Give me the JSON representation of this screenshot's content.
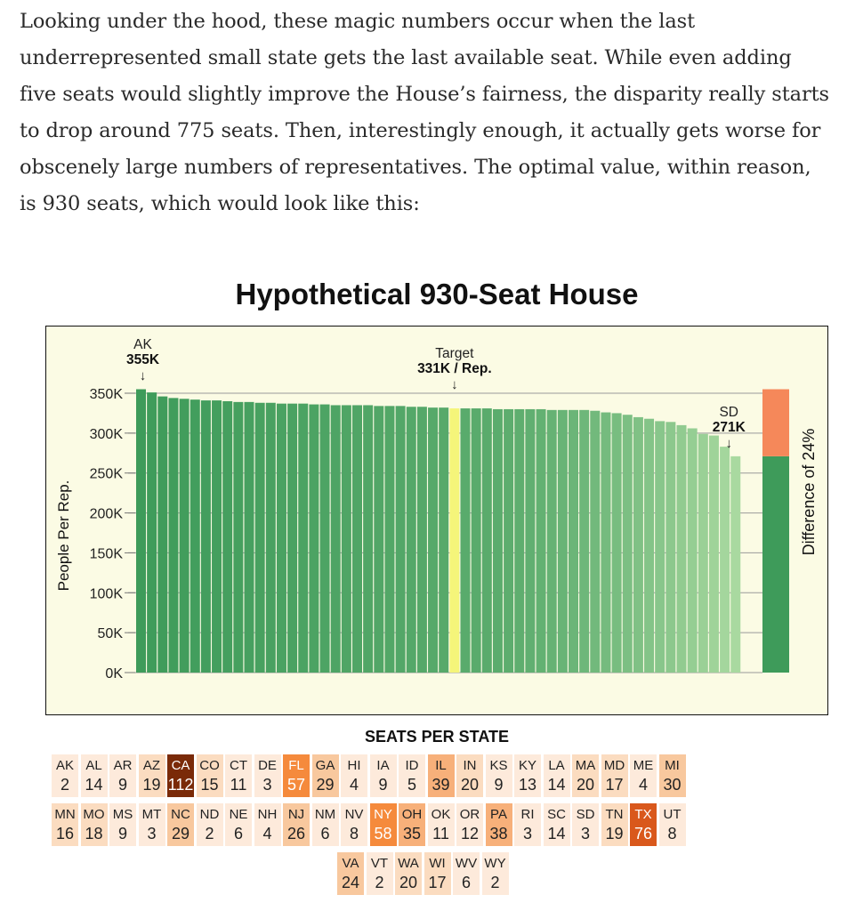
{
  "article": {
    "paragraph": "Looking under the hood, these magic numbers occur when the last underrepresented small state gets the last available seat. While even adding five seats would slightly improve the House’s fairness, the disparity really starts to drop around 775 seats. Then, interestingly enough, it actually gets worse for obscenely large numbers of representatives. The optimal value, within reason, is 930 seats, which would look like this:"
  },
  "chart_data": {
    "type": "bar",
    "title": "Hypothetical 930-Seat House",
    "ylabel": "People Per Rep.",
    "xlabel": "",
    "ylim": [
      0,
      350000
    ],
    "yticks": [
      "0K",
      "50K",
      "100K",
      "150K",
      "200K",
      "250K",
      "300K",
      "350K"
    ],
    "values": [
      355000,
      351000,
      346000,
      344000,
      343000,
      342000,
      341000,
      341000,
      340000,
      339000,
      339000,
      338000,
      338000,
      337000,
      337000,
      337000,
      336000,
      336000,
      335000,
      335000,
      335000,
      335000,
      334000,
      334000,
      334000,
      333000,
      333000,
      332000,
      332000,
      331000,
      331000,
      331000,
      331000,
      330000,
      330000,
      330000,
      330000,
      330000,
      329000,
      329000,
      329000,
      329000,
      328000,
      326000,
      325000,
      323000,
      320000,
      318000,
      315000,
      314000,
      310000,
      306000,
      299000,
      297000,
      283000,
      271000
    ],
    "target_index": 29,
    "target_value": 331000,
    "annotations": {
      "ak": {
        "label": "AK",
        "value": "355K"
      },
      "target": {
        "label": "Target",
        "value": "331K / Rep."
      },
      "sd": {
        "label": "SD",
        "value": "271K"
      }
    },
    "difference": {
      "low": 271000,
      "high": 355000,
      "label": "Difference of 24%"
    },
    "colors": {
      "bar_dark": "#3e9b5a",
      "bar_light": "#a9d9a0",
      "target_bar": "#f5f57a",
      "diff_top": "#f5885a",
      "background": "#fbfbe4"
    }
  },
  "seats": {
    "title": "SEATS PER STATE",
    "rows": [
      [
        [
          "AK",
          2
        ],
        [
          "AL",
          14
        ],
        [
          "AR",
          9
        ],
        [
          "AZ",
          19
        ],
        [
          "CA",
          112
        ],
        [
          "CO",
          15
        ],
        [
          "CT",
          11
        ],
        [
          "DE",
          3
        ],
        [
          "FL",
          57
        ],
        [
          "GA",
          29
        ],
        [
          "HI",
          4
        ],
        [
          "IA",
          9
        ],
        [
          "ID",
          5
        ],
        [
          "IL",
          39
        ],
        [
          "IN",
          20
        ],
        [
          "KS",
          9
        ],
        [
          "KY",
          13
        ],
        [
          "LA",
          14
        ],
        [
          "MA",
          20
        ],
        [
          "MD",
          17
        ],
        [
          "ME",
          4
        ],
        [
          "MI",
          30
        ]
      ],
      [
        [
          "MN",
          16
        ],
        [
          "MO",
          18
        ],
        [
          "MS",
          9
        ],
        [
          "MT",
          3
        ],
        [
          "NC",
          29
        ],
        [
          "ND",
          2
        ],
        [
          "NE",
          6
        ],
        [
          "NH",
          4
        ],
        [
          "NJ",
          26
        ],
        [
          "NM",
          6
        ],
        [
          "NV",
          8
        ],
        [
          "NY",
          58
        ],
        [
          "OH",
          35
        ],
        [
          "OK",
          11
        ],
        [
          "OR",
          12
        ],
        [
          "PA",
          38
        ],
        [
          "RI",
          3
        ],
        [
          "SC",
          14
        ],
        [
          "SD",
          3
        ],
        [
          "TN",
          19
        ],
        [
          "TX",
          76
        ],
        [
          "UT",
          8
        ]
      ],
      [
        [
          "VA",
          24
        ],
        [
          "VT",
          2
        ],
        [
          "WA",
          20
        ],
        [
          "WI",
          17
        ],
        [
          "WV",
          6
        ],
        [
          "WY",
          2
        ]
      ]
    ]
  }
}
